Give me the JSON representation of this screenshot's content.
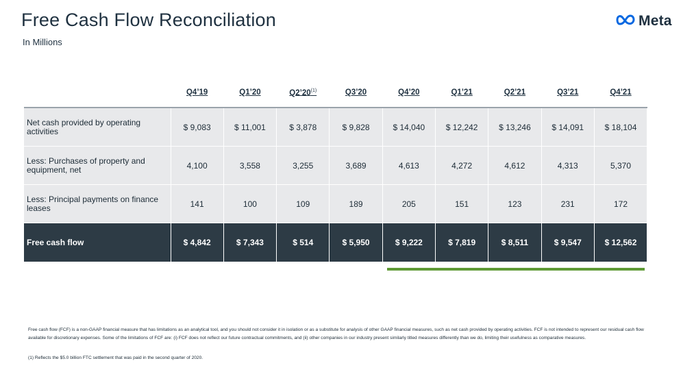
{
  "header": {
    "title": "Free Cash Flow Reconciliation",
    "subtitle": "In Millions",
    "logo_text": "Meta",
    "logo_icon": "meta-infinity-logo"
  },
  "table": {
    "columns": [
      "Q4’19",
      "Q1’20",
      "Q2’20",
      "Q3’20",
      "Q4’20",
      "Q1’21",
      "Q2’21",
      "Q3’21",
      "Q4’21"
    ],
    "q2_20_footnote_marker": "(1)",
    "rows": [
      {
        "label": "Net cash provided by operating activities",
        "values": [
          "$ 9,083",
          "$ 11,001",
          "$ 3,878",
          "$ 9,828",
          "$ 14,040",
          "$ 12,242",
          "$ 13,246",
          "$ 14,091",
          "$ 18,104"
        ]
      },
      {
        "label": "Less: Purchases of property and equipment, net",
        "values": [
          "4,100",
          "3,558",
          "3,255",
          "3,689",
          "4,613",
          "4,272",
          "4,612",
          "4,313",
          "5,370"
        ]
      },
      {
        "label": "Less: Principal payments on finance leases",
        "values": [
          "141",
          "100",
          "109",
          "189",
          "205",
          "151",
          "123",
          "231",
          "172"
        ]
      }
    ],
    "total": {
      "label": "Free cash flow",
      "values": [
        "$ 4,842",
        "$ 7,343",
        "$ 514",
        "$ 5,950",
        "$ 9,222",
        "$ 7,819",
        "$ 8,511",
        "$ 9,547",
        "$ 12,562"
      ]
    }
  },
  "colors": {
    "total_row_bg": "#2d3b45",
    "row_bg": "#e8e9eb",
    "highlight_bar": "#5e9a35",
    "logo_blue": "#0668e1"
  },
  "footnotes": {
    "main": "Free cash flow (FCF) is a non-GAAP financial measure that has limitations as an analytical tool, and you should not consider it in isolation or as a substitute for analysis of other GAAP financial measures, such as net cash provided by operating activities. FCF is not intended to represent our residual cash flow available for discretionary expenses. Some of the limitations of FCF are: (i) FCF does not reflect our future contractual commitments, and (ii) other companies in our industry present similarly titled measures differently than we do, limiting their usefulness as comparative measures.",
    "note1": "(1) Reflects the $5.0 billion FTC settlement that was paid in the second quarter of 2020."
  }
}
